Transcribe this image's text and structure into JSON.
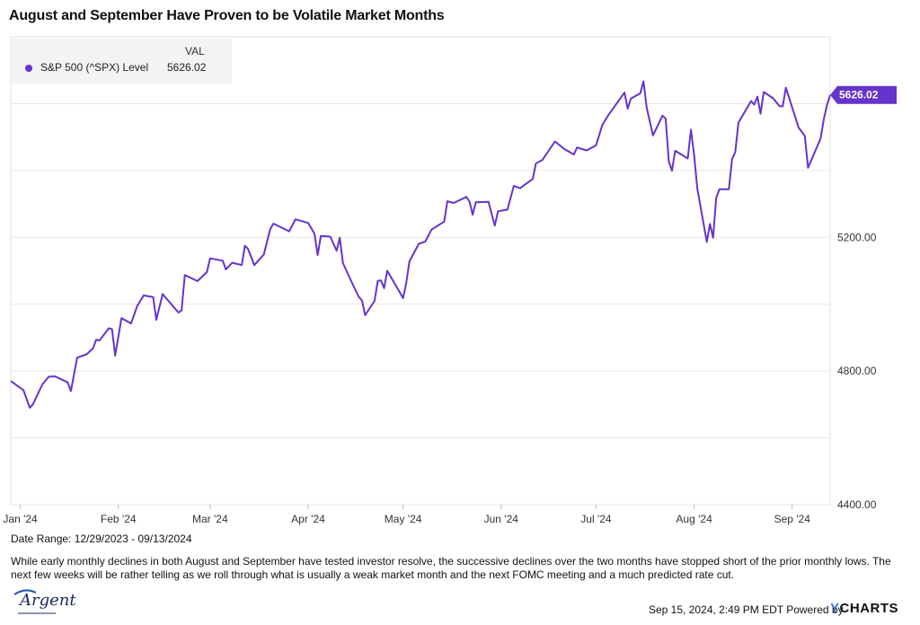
{
  "header": {
    "title": "August and September Have Proven to be Volatile Market Months"
  },
  "legend": {
    "column_header": "VAL",
    "series_name": "S&P 500 (^SPX) Level",
    "series_value": "5626.02"
  },
  "last_value_label": "5626.02",
  "date_range": "Date Range: 12/29/2023 - 09/13/2024",
  "caption": "While early monthly declines in both August and September have tested investor resolve, the successive declines over the two months have stopped short of the prior monthly lows. The next few weeks will be rather telling as we roll through what is usually a weak market month and the next FOMC meeting and a much predicted rate cut.",
  "logo_text": "Argent",
  "footer": {
    "timestamp": "Sep 15, 2024, 2:49 PM EDT Powered by",
    "brand_y": "Y",
    "brand_rest": "CHARTS"
  },
  "colors": {
    "series": "#6633cc",
    "grid": "#e6e6e6",
    "axis_text": "#333333"
  },
  "chart_data": {
    "type": "line",
    "title": "August and September Have Proven to be Volatile Market Months",
    "xlabel": "",
    "ylabel": "",
    "ylim": [
      4400,
      5800
    ],
    "y_ticks": [
      4400,
      4800,
      5200
    ],
    "y_tick_labels": [
      "4400.00",
      "4800.00",
      "5200.00"
    ],
    "x_range": [
      "2023-12-29",
      "2024-09-13"
    ],
    "x_ticks": [
      {
        "date": "2024-01-01",
        "label": "Jan '24"
      },
      {
        "date": "2024-02-01",
        "label": "Feb '24"
      },
      {
        "date": "2024-03-01",
        "label": "Mar '24"
      },
      {
        "date": "2024-04-01",
        "label": "Apr '24"
      },
      {
        "date": "2024-05-01",
        "label": "May '24"
      },
      {
        "date": "2024-06-01",
        "label": "Jun '24"
      },
      {
        "date": "2024-07-01",
        "label": "Jul '24"
      },
      {
        "date": "2024-08-01",
        "label": "Aug '24"
      },
      {
        "date": "2024-09-01",
        "label": "Sep '24"
      }
    ],
    "grid": true,
    "legend_position": "top-left",
    "series": [
      {
        "name": "S&P 500 (^SPX) Level",
        "points": [
          [
            "2023-12-29",
            4770
          ],
          [
            "2024-01-02",
            4743
          ],
          [
            "2024-01-04",
            4690
          ],
          [
            "2024-01-05",
            4700
          ],
          [
            "2024-01-08",
            4760
          ],
          [
            "2024-01-10",
            4783
          ],
          [
            "2024-01-12",
            4784
          ],
          [
            "2024-01-16",
            4766
          ],
          [
            "2024-01-17",
            4740
          ],
          [
            "2024-01-19",
            4840
          ],
          [
            "2024-01-22",
            4850
          ],
          [
            "2024-01-24",
            4868
          ],
          [
            "2024-01-25",
            4894
          ],
          [
            "2024-01-26",
            4891
          ],
          [
            "2024-01-29",
            4928
          ],
          [
            "2024-01-30",
            4925
          ],
          [
            "2024-01-31",
            4846
          ],
          [
            "2024-02-02",
            4958
          ],
          [
            "2024-02-05",
            4942
          ],
          [
            "2024-02-07",
            4995
          ],
          [
            "2024-02-09",
            5026
          ],
          [
            "2024-02-12",
            5021
          ],
          [
            "2024-02-13",
            4953
          ],
          [
            "2024-02-15",
            5030
          ],
          [
            "2024-02-20",
            4975
          ],
          [
            "2024-02-21",
            4981
          ],
          [
            "2024-02-22",
            5087
          ],
          [
            "2024-02-26",
            5069
          ],
          [
            "2024-02-29",
            5096
          ],
          [
            "2024-03-01",
            5137
          ],
          [
            "2024-03-05",
            5130
          ],
          [
            "2024-03-06",
            5104
          ],
          [
            "2024-03-08",
            5124
          ],
          [
            "2024-03-11",
            5117
          ],
          [
            "2024-03-12",
            5175
          ],
          [
            "2024-03-13",
            5165
          ],
          [
            "2024-03-15",
            5117
          ],
          [
            "2024-03-18",
            5149
          ],
          [
            "2024-03-20",
            5224
          ],
          [
            "2024-03-21",
            5241
          ],
          [
            "2024-03-26",
            5218
          ],
          [
            "2024-03-28",
            5254
          ],
          [
            "2024-04-01",
            5243
          ],
          [
            "2024-04-03",
            5211
          ],
          [
            "2024-04-04",
            5147
          ],
          [
            "2024-04-05",
            5204
          ],
          [
            "2024-04-08",
            5202
          ],
          [
            "2024-04-10",
            5160
          ],
          [
            "2024-04-11",
            5199
          ],
          [
            "2024-04-12",
            5123
          ],
          [
            "2024-04-15",
            5061
          ],
          [
            "2024-04-17",
            5022
          ],
          [
            "2024-04-18",
            5011
          ],
          [
            "2024-04-19",
            4967
          ],
          [
            "2024-04-22",
            5010
          ],
          [
            "2024-04-23",
            5070
          ],
          [
            "2024-04-24",
            5071
          ],
          [
            "2024-04-25",
            5048
          ],
          [
            "2024-04-26",
            5100
          ],
          [
            "2024-04-30",
            5035
          ],
          [
            "2024-05-01",
            5018
          ],
          [
            "2024-05-02",
            5064
          ],
          [
            "2024-05-03",
            5128
          ],
          [
            "2024-05-06",
            5181
          ],
          [
            "2024-05-08",
            5187
          ],
          [
            "2024-05-10",
            5223
          ],
          [
            "2024-05-14",
            5247
          ],
          [
            "2024-05-15",
            5308
          ],
          [
            "2024-05-17",
            5303
          ],
          [
            "2024-05-21",
            5321
          ],
          [
            "2024-05-22",
            5307
          ],
          [
            "2024-05-23",
            5268
          ],
          [
            "2024-05-24",
            5305
          ],
          [
            "2024-05-28",
            5306
          ],
          [
            "2024-05-30",
            5235
          ],
          [
            "2024-05-31",
            5278
          ],
          [
            "2024-06-03",
            5283
          ],
          [
            "2024-06-05",
            5354
          ],
          [
            "2024-06-07",
            5347
          ],
          [
            "2024-06-11",
            5375
          ],
          [
            "2024-06-12",
            5421
          ],
          [
            "2024-06-14",
            5431
          ],
          [
            "2024-06-18",
            5487
          ],
          [
            "2024-06-21",
            5464
          ],
          [
            "2024-06-24",
            5448
          ],
          [
            "2024-06-25",
            5469
          ],
          [
            "2024-06-28",
            5460
          ],
          [
            "2024-07-01",
            5475
          ],
          [
            "2024-07-03",
            5537
          ],
          [
            "2024-07-05",
            5567
          ],
          [
            "2024-07-10",
            5633
          ],
          [
            "2024-07-11",
            5585
          ],
          [
            "2024-07-12",
            5615
          ],
          [
            "2024-07-15",
            5631
          ],
          [
            "2024-07-16",
            5667
          ],
          [
            "2024-07-17",
            5588
          ],
          [
            "2024-07-19",
            5505
          ],
          [
            "2024-07-22",
            5564
          ],
          [
            "2024-07-23",
            5555
          ],
          [
            "2024-07-24",
            5427
          ],
          [
            "2024-07-25",
            5399
          ],
          [
            "2024-07-26",
            5459
          ],
          [
            "2024-07-30",
            5436
          ],
          [
            "2024-07-31",
            5522
          ],
          [
            "2024-08-01",
            5446
          ],
          [
            "2024-08-02",
            5347
          ],
          [
            "2024-08-05",
            5186
          ],
          [
            "2024-08-06",
            5240
          ],
          [
            "2024-08-07",
            5199
          ],
          [
            "2024-08-08",
            5319
          ],
          [
            "2024-08-09",
            5344
          ],
          [
            "2024-08-12",
            5344
          ],
          [
            "2024-08-13",
            5434
          ],
          [
            "2024-08-14",
            5455
          ],
          [
            "2024-08-15",
            5543
          ],
          [
            "2024-08-19",
            5608
          ],
          [
            "2024-08-20",
            5597
          ],
          [
            "2024-08-21",
            5621
          ],
          [
            "2024-08-22",
            5570
          ],
          [
            "2024-08-23",
            5635
          ],
          [
            "2024-08-26",
            5616
          ],
          [
            "2024-08-28",
            5592
          ],
          [
            "2024-08-29",
            5592
          ],
          [
            "2024-08-30",
            5648
          ],
          [
            "2024-09-03",
            5529
          ],
          [
            "2024-09-05",
            5503
          ],
          [
            "2024-09-06",
            5408
          ],
          [
            "2024-09-10",
            5496
          ],
          [
            "2024-09-11",
            5554
          ],
          [
            "2024-09-12",
            5596
          ],
          [
            "2024-09-13",
            5626.02
          ]
        ]
      }
    ]
  }
}
